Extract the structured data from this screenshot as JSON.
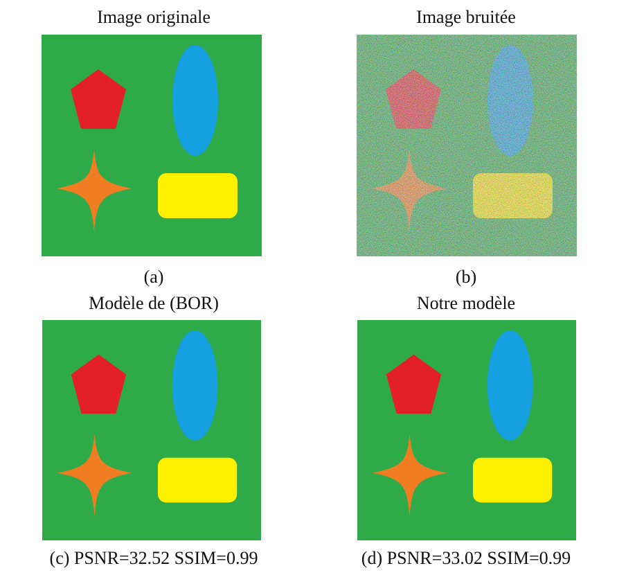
{
  "panels": [
    {
      "title": "Image originale",
      "caption": "(a)"
    },
    {
      "title": "Image bruitée",
      "caption": "(b)"
    },
    {
      "title": "Modèle de (BOR)",
      "caption": "(c) PSNR=32.52 SSIM=0.99"
    },
    {
      "title": "Notre modèle",
      "caption": "(d) PSNR=33.02 SSIM=0.99"
    }
  ]
}
